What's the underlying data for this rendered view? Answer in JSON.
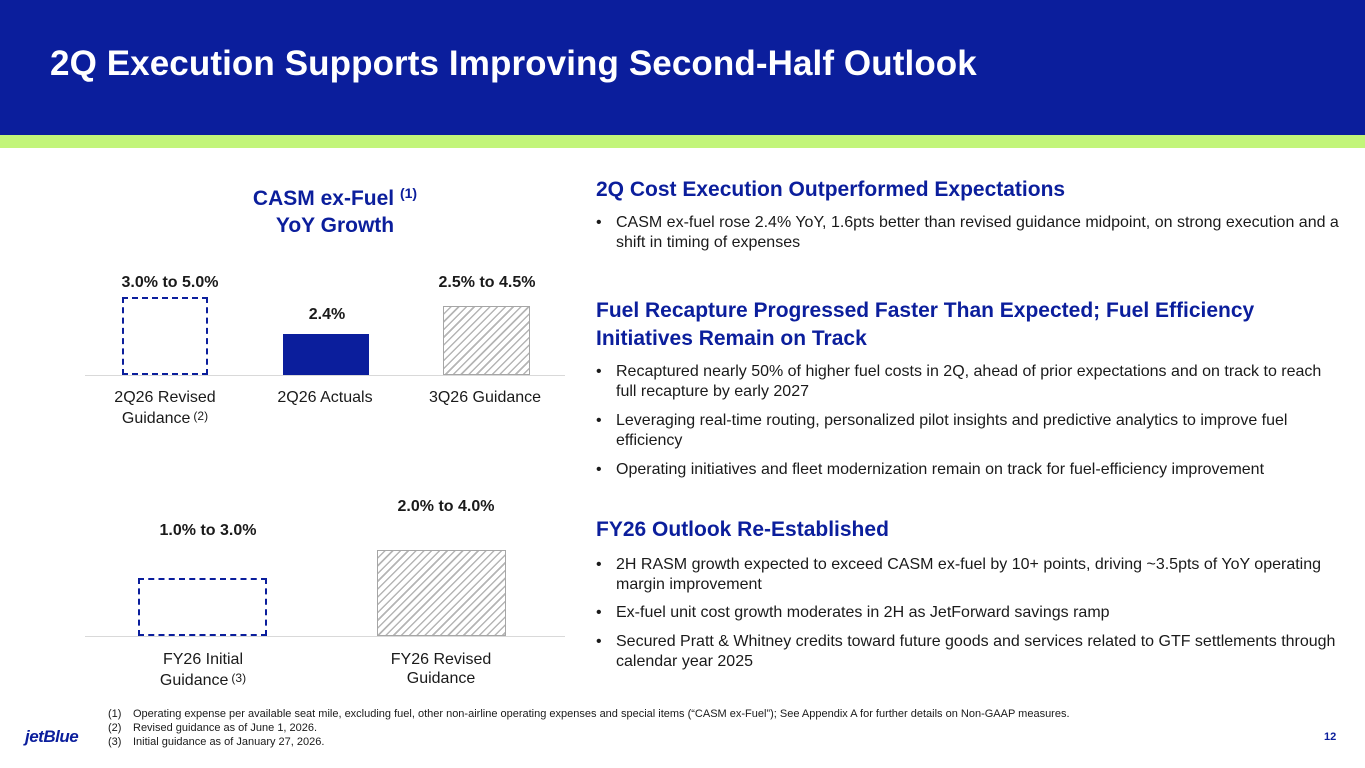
{
  "header": {
    "title": "2Q Execution Supports Improving Second-Half Outlook"
  },
  "chart1": {
    "title_line1": "CASM ex-Fuel",
    "title_sup": "(1)",
    "title_line2": "YoY Growth",
    "bars": [
      {
        "label": "3.0% to 5.0%",
        "cat_line1": "2Q26 Revised",
        "cat_line2": "Guidance",
        "cat_sup": "(2)"
      },
      {
        "label": "2.4%",
        "cat_line1": "2Q26 Actuals"
      },
      {
        "label": "2.5% to 4.5%",
        "cat_line1": "3Q26 Guidance"
      }
    ]
  },
  "chart2": {
    "bars": [
      {
        "label": "1.0% to 3.0%",
        "cat_line1": "FY26 Initial",
        "cat_line2": "Guidance",
        "cat_sup": "(3)"
      },
      {
        "label": "2.0% to 4.0%",
        "cat_line1": "FY26 Revised",
        "cat_line2": "Guidance"
      }
    ]
  },
  "chart_data": [
    {
      "type": "bar",
      "title": "CASM ex-Fuel YoY Growth",
      "categories": [
        "2Q26 Revised Guidance",
        "2Q26 Actuals",
        "3Q26 Guidance"
      ],
      "ranges": [
        [
          3.0,
          5.0
        ],
        null,
        [
          2.5,
          4.5
        ]
      ],
      "values": [
        5.0,
        2.4,
        4.5
      ],
      "unit": "%"
    },
    {
      "type": "bar",
      "categories": [
        "FY26 Initial Guidance",
        "FY26 Revised Guidance"
      ],
      "ranges": [
        [
          1.0,
          3.0
        ],
        [
          2.0,
          4.0
        ]
      ],
      "values": [
        3.0,
        4.0
      ],
      "unit": "%"
    }
  ],
  "sections": [
    {
      "heading": "2Q Cost Execution Outperformed Expectations",
      "bullets": [
        "CASM ex-fuel rose 2.4% YoY, 1.6pts better than revised guidance midpoint, on strong execution and a shift in timing of expenses"
      ]
    },
    {
      "heading": "Fuel Recapture Progressed Faster Than Expected; Fuel Efficiency Initiatives Remain on Track",
      "bullets": [
        "Recaptured nearly 50% of higher fuel costs in 2Q, ahead of prior expectations and on track to reach full recapture by early 2027",
        "Leveraging real-time routing, personalized pilot insights and predictive analytics to improve fuel efficiency",
        "Operating initiatives and fleet modernization remain on track for fuel-efficiency improvement"
      ]
    },
    {
      "heading": "FY26 Outlook Re-Established",
      "bullets": [
        "2H RASM growth expected to exceed CASM ex-fuel by 10+ points, driving ~3.5pts of YoY operating margin improvement",
        "Ex-fuel unit cost growth moderates in 2H as JetForward savings ramp",
        "Secured Pratt & Whitney credits toward future goods and services related to GTF settlements through calendar year 2025"
      ]
    }
  ],
  "bullet_char": "•",
  "footnotes": [
    {
      "num": "(1)",
      "text": "Operating expense per available seat mile, excluding fuel, other non-airline operating expenses and special items (“CASM ex-Fuel”); See Appendix A for further details on Non-GAAP measures."
    },
    {
      "num": "(2)",
      "text": "Revised guidance as of June 1, 2026."
    },
    {
      "num": "(3)",
      "text": "Initial guidance as of January 27, 2026."
    }
  ],
  "logo": "jetBlue",
  "page_number": "12",
  "colors": {
    "brand_blue": "#0b1e9c",
    "accent_green": "#c2f57a",
    "hatch_gray": "#b5b5b5"
  }
}
